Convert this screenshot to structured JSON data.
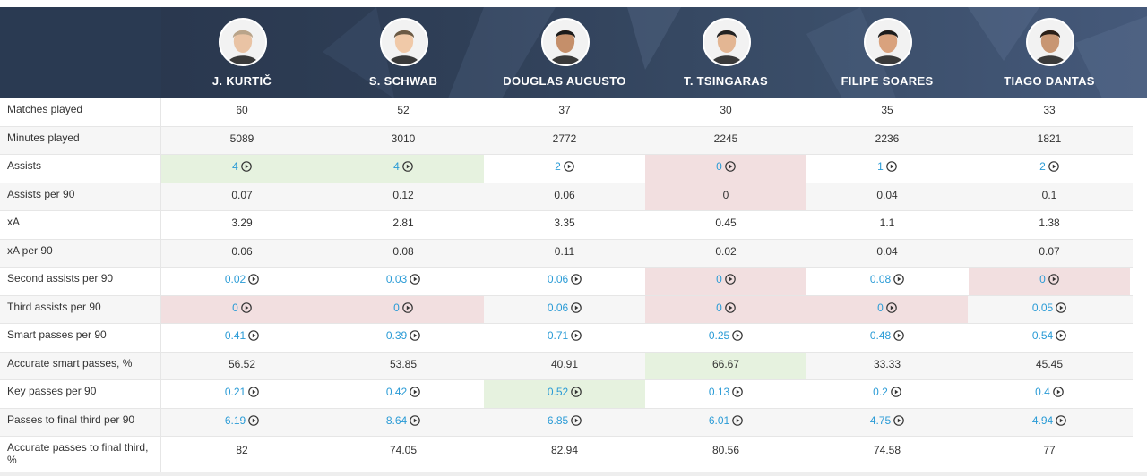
{
  "players": [
    {
      "name": "J. KURTIČ"
    },
    {
      "name": "S. SCHWAB"
    },
    {
      "name": "DOUGLAS AUGUSTO"
    },
    {
      "name": "T. TSINGARAS"
    },
    {
      "name": "FILIPE SOARES"
    },
    {
      "name": "TIAGO DANTAS"
    }
  ],
  "rows": [
    {
      "label": "Matches played",
      "values": [
        "60",
        "52",
        "37",
        "30",
        "35",
        "33"
      ],
      "link": false,
      "highlight": [
        "",
        "",
        "",
        "",
        "",
        ""
      ]
    },
    {
      "label": "Minutes played",
      "values": [
        "5089",
        "3010",
        "2772",
        "2245",
        "2236",
        "1821"
      ],
      "link": false,
      "highlight": [
        "",
        "",
        "",
        "",
        "",
        ""
      ]
    },
    {
      "label": "Assists",
      "values": [
        "4",
        "4",
        "2",
        "0",
        "1",
        "2"
      ],
      "link": true,
      "highlight": [
        "green",
        "green",
        "",
        "red",
        "",
        ""
      ]
    },
    {
      "label": "Assists per 90",
      "values": [
        "0.07",
        "0.12",
        "0.06",
        "0",
        "0.04",
        "0.1"
      ],
      "link": false,
      "highlight": [
        "",
        "",
        "",
        "red",
        "",
        ""
      ]
    },
    {
      "label": "xA",
      "values": [
        "3.29",
        "2.81",
        "3.35",
        "0.45",
        "1.1",
        "1.38"
      ],
      "link": false,
      "highlight": [
        "",
        "",
        "",
        "",
        "",
        ""
      ]
    },
    {
      "label": "xA per 90",
      "values": [
        "0.06",
        "0.08",
        "0.11",
        "0.02",
        "0.04",
        "0.07"
      ],
      "link": false,
      "highlight": [
        "",
        "",
        "",
        "",
        "",
        ""
      ]
    },
    {
      "label": "Second assists per 90",
      "values": [
        "0.02",
        "0.03",
        "0.06",
        "0",
        "0.08",
        "0"
      ],
      "link": true,
      "highlight": [
        "",
        "",
        "",
        "red",
        "",
        "red"
      ]
    },
    {
      "label": "Third assists per 90",
      "values": [
        "0",
        "0",
        "0.06",
        "0",
        "0",
        "0.05"
      ],
      "link": true,
      "highlight": [
        "red",
        "red",
        "",
        "red",
        "red",
        ""
      ]
    },
    {
      "label": "Smart passes per 90",
      "values": [
        "0.41",
        "0.39",
        "0.71",
        "0.25",
        "0.48",
        "0.54"
      ],
      "link": true,
      "highlight": [
        "",
        "",
        "",
        "",
        "",
        ""
      ]
    },
    {
      "label": "Accurate smart passes, %",
      "values": [
        "56.52",
        "53.85",
        "40.91",
        "66.67",
        "33.33",
        "45.45"
      ],
      "link": false,
      "highlight": [
        "",
        "",
        "",
        "green",
        "",
        ""
      ]
    },
    {
      "label": "Key passes per 90",
      "values": [
        "0.21",
        "0.42",
        "0.52",
        "0.13",
        "0.2",
        "0.4"
      ],
      "link": true,
      "highlight": [
        "",
        "",
        "green",
        "",
        "",
        ""
      ]
    },
    {
      "label": "Passes to final third per 90",
      "values": [
        "6.19",
        "8.64",
        "6.85",
        "6.01",
        "4.75",
        "4.94"
      ],
      "link": true,
      "highlight": [
        "",
        "",
        "",
        "",
        "",
        ""
      ]
    },
    {
      "label": "Accurate passes to final third, %",
      "values": [
        "82",
        "74.05",
        "82.94",
        "80.56",
        "74.58",
        "77"
      ],
      "link": false,
      "highlight": [
        "",
        "",
        "",
        "",
        "",
        ""
      ]
    }
  ],
  "icons": {
    "play": "play-circle-icon",
    "avatar": "player-photo-icon"
  },
  "colors": {
    "header": "#2f3f57",
    "link": "#2a9bd6",
    "good": "#e6f2df",
    "bad": "#f2dfe0"
  }
}
